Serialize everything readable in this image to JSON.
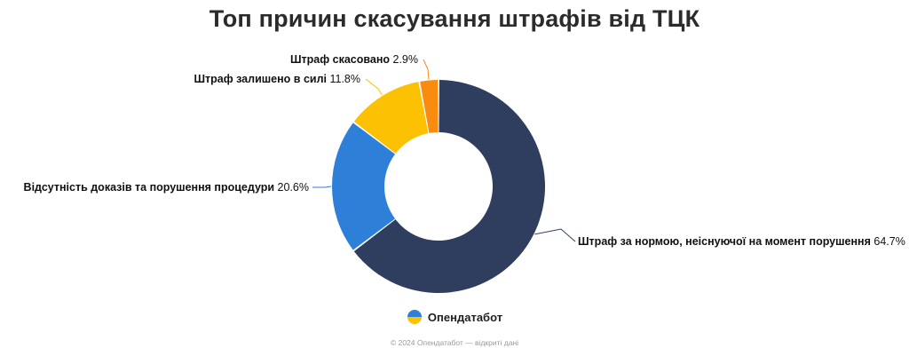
{
  "chart_data": {
    "type": "pie",
    "title": "Топ причин скасування штрафів від ТЦК",
    "slices": [
      {
        "label": "Штраф за нормою, неіснуючої на момент порушення",
        "value": 64.7,
        "value_label": "64.7%",
        "color": "#2f3d5e"
      },
      {
        "label": "Відсутність доказів та порушення процедури",
        "value": 20.6,
        "value_label": "20.6%",
        "color": "#2d7fd8"
      },
      {
        "label": "Штраф залишено в силі",
        "value": 11.8,
        "value_label": "11.8%",
        "color": "#fbc102"
      },
      {
        "label": "Штраф скасовано",
        "value": 2.9,
        "value_label": "2.9%",
        "color": "#f98c0e"
      }
    ]
  },
  "brand": {
    "name": "Опендатабот"
  },
  "footer": {
    "text": "© 2024 Опендатабот — відкриті дані"
  }
}
